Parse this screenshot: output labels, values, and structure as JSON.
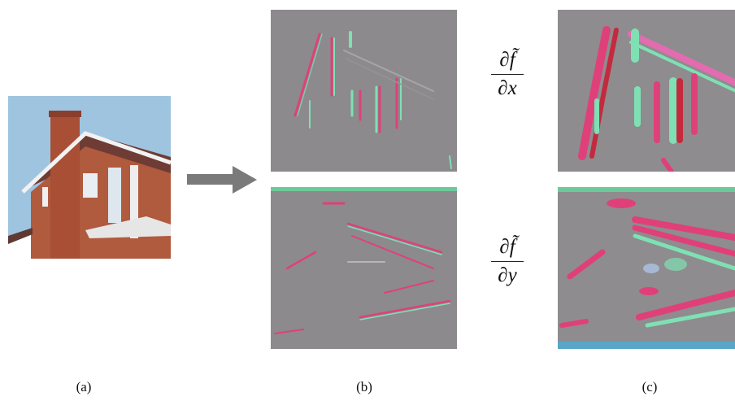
{
  "captions": {
    "a": "(a)",
    "b": "(b)",
    "c": "(c)"
  },
  "labels": {
    "dfdx_num": "∂f̃",
    "dfdx_den": "∂x",
    "dfdy_num": "∂f̃",
    "dfdy_den": "∂y"
  },
  "colors": {
    "sky": "#9fc4e0",
    "brick": "#b05a3e",
    "roof": "#6e3c34",
    "gradient_bg": "#8c8a8c",
    "edge_magenta": "#e0407a",
    "edge_green": "#7fe0b4",
    "arrow": "#7a7a7a"
  },
  "icons": {
    "arrow": "right-arrow-icon"
  }
}
